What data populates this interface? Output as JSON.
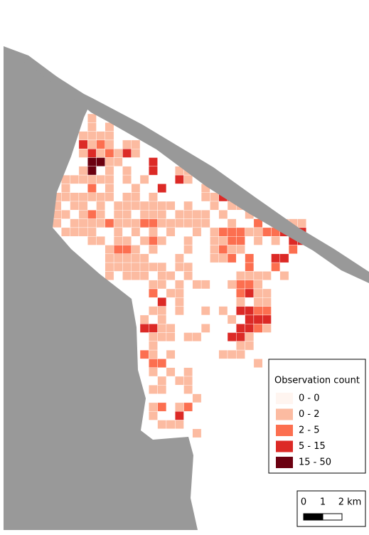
{
  "legend": {
    "title": "Observation count",
    "items": [
      {
        "label": "0 - 0",
        "color": "#fff5f0"
      },
      {
        "label": "0 - 2",
        "color": "#fcbba1"
      },
      {
        "label": "2 - 5",
        "color": "#fc6f50"
      },
      {
        "label": "5 - 15",
        "color": "#dc2a26"
      },
      {
        "label": "15 - 50",
        "color": "#6b0010"
      }
    ]
  },
  "scale_bar": {
    "labels": [
      "0",
      "1",
      "2 km"
    ]
  }
}
